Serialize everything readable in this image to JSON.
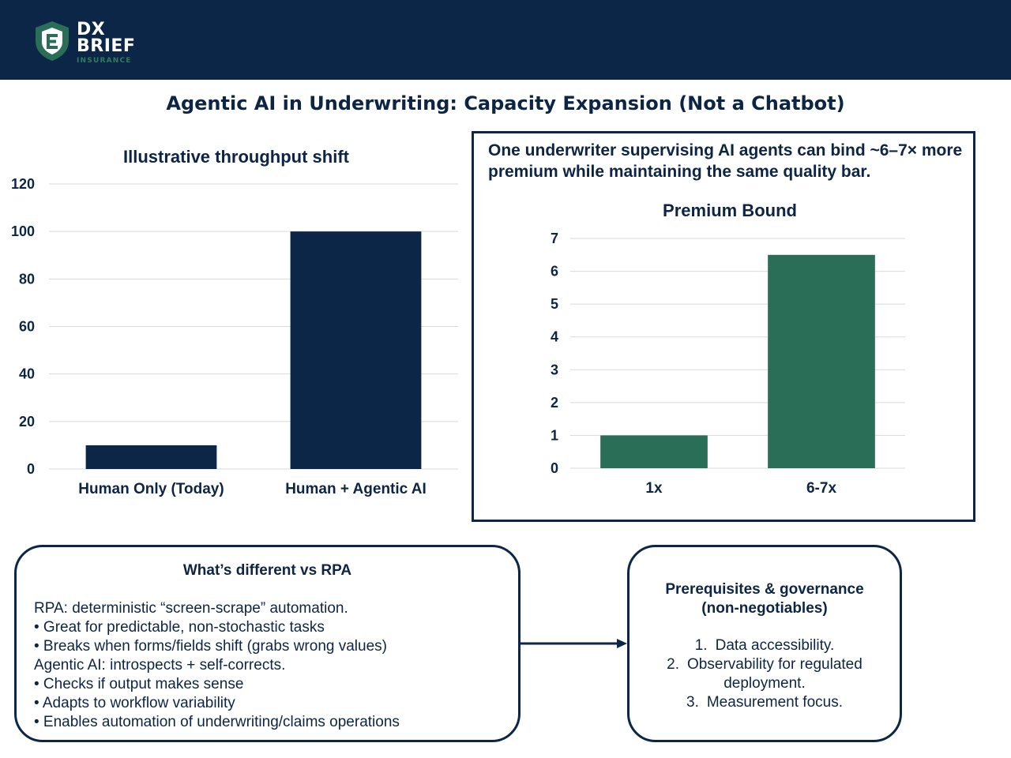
{
  "header": {
    "logo_line1": "DX",
    "logo_line2": "BRIEF",
    "logo_sub": "INSURANCE"
  },
  "page_title": "Agentic AI in Underwriting: Capacity Expansion (Not a Chatbot)",
  "callout": {
    "text": "One underwriter supervising AI agents can bind ~6–7× more premium while maintaining the same quality bar."
  },
  "rpa": {
    "title": "What’s different vs RPA",
    "lines": [
      "RPA: deterministic “screen-scrape” automation.",
      "• Great for predictable, non-stochastic tasks",
      "• Breaks when forms/fields shift (grabs wrong values)",
      "Agentic AI: introspects + self-corrects.",
      "• Checks if output makes sense",
      "• Adapts to workflow variability",
      "• Enables automation of underwriting/claims operations"
    ]
  },
  "governance": {
    "title_line1": "Prerequisites & governance",
    "title_line2": "(non-negotiables)",
    "items": [
      {
        "num": "1.",
        "text": "Data accessibility."
      },
      {
        "num": "2.",
        "text": "Observability for regulated deployment."
      },
      {
        "num": "3.",
        "text": "Measurement focus."
      }
    ]
  },
  "colors": {
    "navy": "#0c2647",
    "green": "#2a6e57",
    "grid": "#d9d9d9"
  },
  "chart_data": [
    {
      "type": "bar",
      "title": "Illustrative throughput shift",
      "categories": [
        "Human Only (Today)",
        "Human + Agentic AI"
      ],
      "values": [
        10,
        100
      ],
      "ylim": [
        0,
        120
      ],
      "yticks": [
        0,
        20,
        40,
        60,
        80,
        100,
        120
      ],
      "grid": true,
      "color": "#0c2647"
    },
    {
      "type": "bar",
      "title": "Premium Bound",
      "categories": [
        "1x",
        "6-7x"
      ],
      "values": [
        1,
        6.5
      ],
      "ylim": [
        0,
        7
      ],
      "yticks": [
        0,
        1,
        2,
        3,
        4,
        5,
        6,
        7
      ],
      "grid": true,
      "color": "#2a6e57"
    }
  ]
}
